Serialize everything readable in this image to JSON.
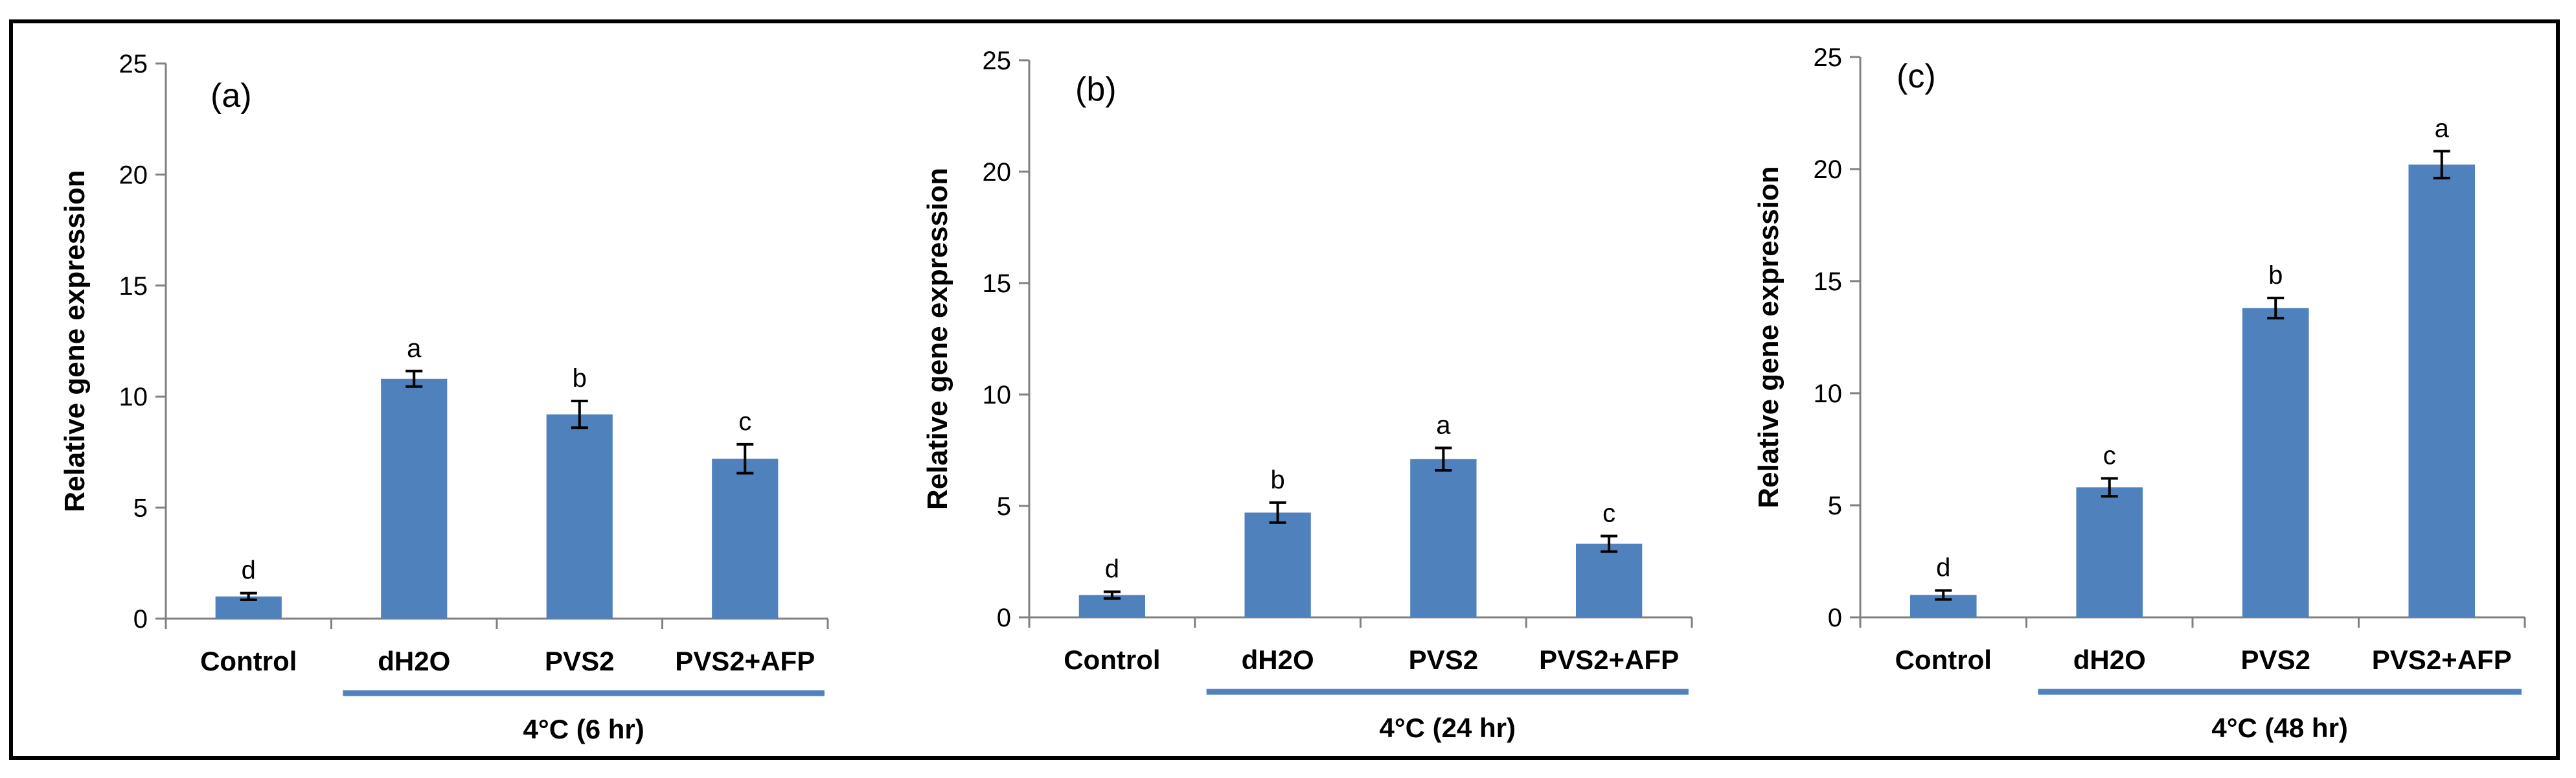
{
  "chart_data": [
    {
      "type": "bar",
      "panel_label": "(a)",
      "ylabel": "Relative gene expression",
      "ylim": [
        0,
        25
      ],
      "yticks": [
        0,
        5,
        10,
        15,
        20,
        25
      ],
      "categories": [
        "Control",
        "dH2O",
        "PVS2",
        "PVS2+AFP"
      ],
      "values": [
        1.0,
        10.8,
        9.2,
        7.2
      ],
      "errors": [
        0.15,
        0.35,
        0.6,
        0.65
      ],
      "significance": [
        "d",
        "a",
        "b",
        "c"
      ],
      "group_label": "4°C (6 hr)",
      "bar_color": "#4f81bd"
    },
    {
      "type": "bar",
      "panel_label": "(b)",
      "ylabel": "Relative gene expression",
      "ylim": [
        0,
        25
      ],
      "yticks": [
        0,
        5,
        10,
        15,
        20,
        25
      ],
      "categories": [
        "Control",
        "dH2O",
        "PVS2",
        "PVS2+AFP"
      ],
      "values": [
        1.0,
        4.7,
        7.1,
        3.3
      ],
      "errors": [
        0.15,
        0.45,
        0.5,
        0.35
      ],
      "significance": [
        "d",
        "b",
        "a",
        "c"
      ],
      "group_label": "4°C (24 hr)",
      "bar_color": "#4f81bd"
    },
    {
      "type": "bar",
      "panel_label": "(c)",
      "ylabel": "Relative gene expression",
      "ylim": [
        0,
        25
      ],
      "yticks": [
        0,
        5,
        10,
        15,
        20,
        25
      ],
      "categories": [
        "Control",
        "dH2O",
        "PVS2",
        "PVS2+AFP"
      ],
      "values": [
        1.0,
        5.8,
        13.8,
        20.2
      ],
      "errors": [
        0.2,
        0.4,
        0.45,
        0.6
      ],
      "significance": [
        "d",
        "c",
        "b",
        "a"
      ],
      "group_label": "4°C (48 hr)",
      "bar_color": "#4f81bd"
    }
  ]
}
